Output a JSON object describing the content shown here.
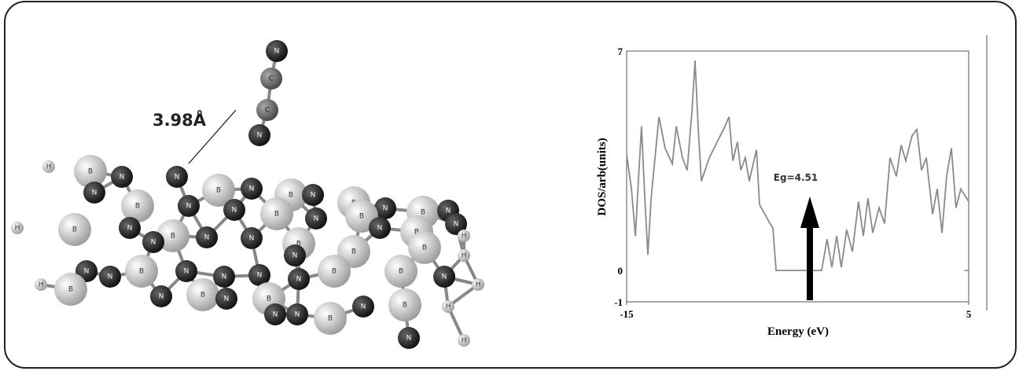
{
  "chart_data": {
    "type": "line",
    "x_label": "Energy (eV)",
    "y_label": "DOS/arb(units)",
    "annotation": "Eg=4.51",
    "xlim": [
      -15,
      5
    ],
    "xticks": [
      -15,
      5
    ],
    "ylim": [
      -1,
      7
    ],
    "yticks": [
      7,
      0,
      -1
    ],
    "color": "#8a8a8a",
    "x": [
      -15,
      -14.72,
      -14.49,
      -14.31,
      -14.13,
      -13.94,
      -13.76,
      -13.57,
      -13.34,
      -13.11,
      -12.75,
      -12.33,
      -12.1,
      -11.74,
      -11.46,
      -11.18,
      -11.0,
      -10.82,
      -10.63,
      -10.17,
      -9.71,
      -9.25,
      -9.02,
      -8.79,
      -8.52,
      -8.33,
      -8.06,
      -7.83,
      -7.41,
      -7.23,
      -6.72,
      -6.45,
      -6.26,
      -3.6,
      -3.28,
      -3.0,
      -2.72,
      -2.45,
      -2.13,
      -1.8,
      -1.44,
      -1.16,
      -0.89,
      -0.61,
      -0.24,
      0.08,
      0.4,
      0.77,
      1.05,
      1.32,
      1.69,
      1.97,
      2.24,
      2.52,
      2.89,
      3.16,
      3.44,
      3.71,
      3.99,
      4.26,
      4.54,
      5.0
    ],
    "values": [
      3.7,
      2.6,
      1.1,
      2.9,
      4.6,
      2.3,
      0.5,
      2.3,
      3.6,
      4.9,
      3.9,
      3.4,
      4.6,
      3.6,
      3.2,
      5.1,
      6.7,
      4.6,
      2.85,
      3.6,
      4.1,
      4.6,
      4.9,
      3.5,
      4.1,
      3.2,
      3.6,
      2.85,
      3.85,
      2.1,
      1.6,
      1.35,
      0,
      0,
      1.0,
      0.1,
      1.1,
      0.1,
      1.3,
      0.6,
      2.2,
      1.1,
      2.3,
      1.2,
      2.0,
      1.5,
      3.6,
      3.0,
      4.0,
      3.5,
      4.3,
      4.5,
      3.2,
      3.6,
      1.8,
      2.6,
      1.2,
      3.0,
      3.9,
      2.0,
      2.6,
      2.2
    ]
  },
  "molecule": {
    "distance_label": "3.98Å",
    "atoms": [
      "N",
      "C",
      "C",
      "N",
      "H",
      "B",
      "N",
      "N",
      "B",
      "N",
      "B",
      "N",
      "B",
      "N",
      "B",
      "N",
      "N",
      "B",
      "N",
      "N",
      "B",
      "N",
      "B",
      "N",
      "B",
      "N",
      "H",
      "H",
      "B",
      "N",
      "B",
      "N",
      "N",
      "N",
      "B",
      "N",
      "B",
      "B",
      "H",
      "N",
      "B",
      "N",
      "N",
      "N",
      "B",
      "N",
      "B",
      "N",
      "H",
      "H",
      "B",
      "N",
      "N",
      "B",
      "N",
      "B",
      "N",
      "B",
      "N",
      "B",
      "H",
      "N",
      "N",
      "H"
    ]
  }
}
